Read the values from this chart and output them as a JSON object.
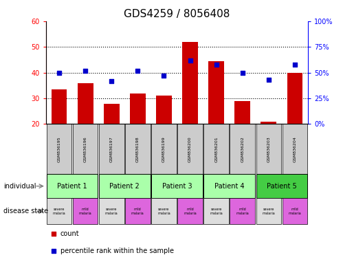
{
  "title": "GDS4259 / 8056408",
  "samples": [
    "GSM836195",
    "GSM836196",
    "GSM836197",
    "GSM836198",
    "GSM836199",
    "GSM836200",
    "GSM836201",
    "GSM836202",
    "GSM836203",
    "GSM836204"
  ],
  "counts": [
    33.5,
    36.0,
    28.0,
    32.0,
    31.0,
    52.0,
    44.5,
    29.0,
    21.0,
    40.0
  ],
  "percentile_right": [
    50.0,
    52.0,
    42.0,
    52.0,
    47.0,
    62.0,
    58.0,
    50.0,
    43.0,
    58.0
  ],
  "bar_bottom": 20,
  "ylim_left": [
    20,
    60
  ],
  "ylim_right": [
    0,
    100
  ],
  "yticks_left": [
    20,
    30,
    40,
    50,
    60
  ],
  "ytick_labels_right": [
    "0%",
    "25%",
    "50%",
    "75%",
    "100%"
  ],
  "bar_color": "#cc0000",
  "dot_color": "#0000cc",
  "patients": [
    {
      "label": "Patient 1",
      "cols": [
        0,
        1
      ],
      "color": "#aaffaa"
    },
    {
      "label": "Patient 2",
      "cols": [
        2,
        3
      ],
      "color": "#aaffaa"
    },
    {
      "label": "Patient 3",
      "cols": [
        4,
        5
      ],
      "color": "#aaffaa"
    },
    {
      "label": "Patient 4",
      "cols": [
        6,
        7
      ],
      "color": "#aaffaa"
    },
    {
      "label": "Patient 5",
      "cols": [
        8,
        9
      ],
      "color": "#44cc44"
    }
  ],
  "disease_states": [
    {
      "label": "severe\nmalaria",
      "col": 0,
      "color": "#dddddd"
    },
    {
      "label": "mild\nmalaria",
      "col": 1,
      "color": "#dd66dd"
    },
    {
      "label": "severe\nmalaria",
      "col": 2,
      "color": "#dddddd"
    },
    {
      "label": "mild\nmalaria",
      "col": 3,
      "color": "#dd66dd"
    },
    {
      "label": "severe\nmalaria",
      "col": 4,
      "color": "#dddddd"
    },
    {
      "label": "mild\nmalaria",
      "col": 5,
      "color": "#dd66dd"
    },
    {
      "label": "severe\nmalaria",
      "col": 6,
      "color": "#dddddd"
    },
    {
      "label": "mild\nmalaria",
      "col": 7,
      "color": "#dd66dd"
    },
    {
      "label": "severe\nmalaria",
      "col": 8,
      "color": "#dddddd"
    },
    {
      "label": "mild\nmalaria",
      "col": 9,
      "color": "#dd66dd"
    }
  ],
  "individual_label": "individual",
  "disease_state_label": "disease state",
  "legend_count": "count",
  "legend_percentile": "percentile rank within the sample",
  "grid_dotted_yticks": [
    30,
    40,
    50
  ],
  "sample_bg_color": "#cccccc",
  "title_fontsize": 11,
  "bar_width": 0.6
}
